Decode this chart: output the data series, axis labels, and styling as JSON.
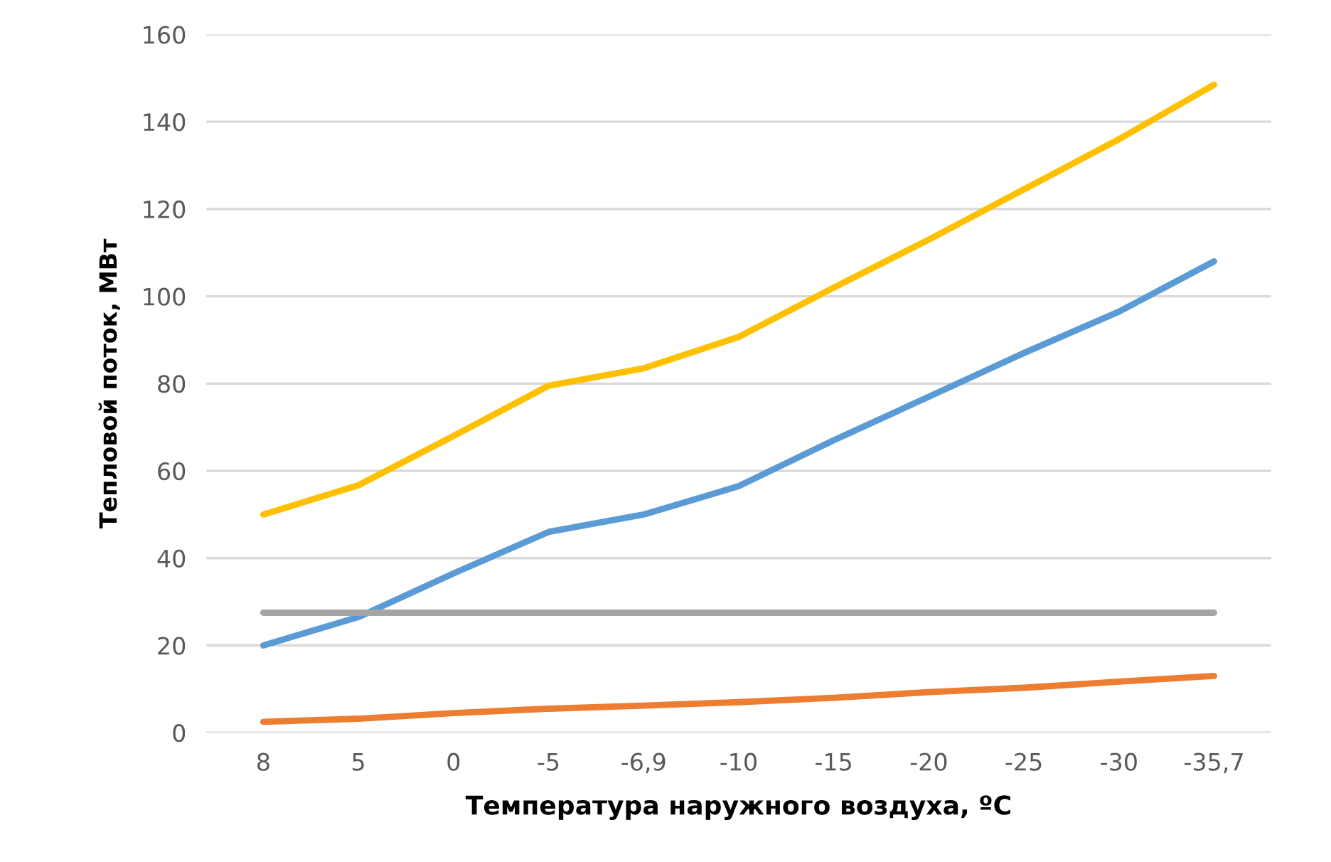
{
  "chart_data": {
    "type": "line",
    "xlabel": "Температура наружного воздуха, ºС",
    "ylabel": "Тепловой поток, МВт",
    "categories": [
      "8",
      "5",
      "0",
      "-5",
      "-6,9",
      "-10",
      "-15",
      "-20",
      "-25",
      "-30",
      "-35,7"
    ],
    "series": [
      {
        "color": "#5b9bd5",
        "values": [
          20,
          26.5,
          36.5,
          46,
          50,
          56.5,
          67,
          77,
          87,
          96.5,
          108
        ]
      },
      {
        "color": "#ed7d31",
        "values": [
          2.5,
          3.2,
          4.5,
          5.5,
          6.2,
          7,
          8,
          9.3,
          10.3,
          11.7,
          13
        ]
      },
      {
        "color": "#a5a5a5",
        "values": [
          27.5,
          27.5,
          27.5,
          27.5,
          27.5,
          27.5,
          27.5,
          27.5,
          27.5,
          27.5,
          27.5
        ]
      },
      {
        "color": "#ffc000",
        "values": [
          50,
          56.7,
          68,
          79.5,
          83.5,
          90.7,
          102,
          113,
          124.5,
          136,
          148.5
        ]
      }
    ],
    "ylim": [
      0,
      160
    ],
    "yticks": [
      0,
      20,
      40,
      60,
      80,
      100,
      120,
      140,
      160
    ],
    "grid": "y",
    "marker": "none",
    "line_style": "solid"
  }
}
